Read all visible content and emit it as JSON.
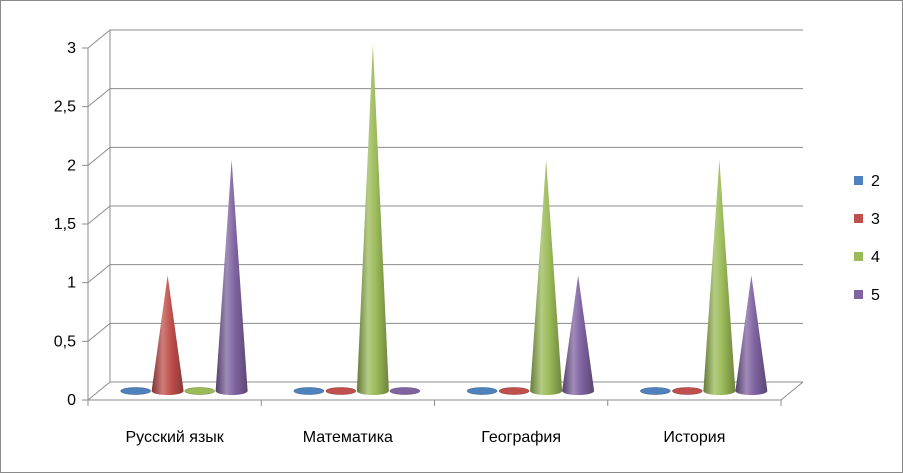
{
  "chart_data": {
    "type": "bar",
    "bar_shape": "cone-3d",
    "categories": [
      "Русский язык",
      "Математика",
      "География",
      "История"
    ],
    "series": [
      {
        "name": "2",
        "color": "#4F81BD",
        "values": [
          0,
          0,
          0,
          0
        ]
      },
      {
        "name": "3",
        "color": "#C0504D",
        "values": [
          1,
          0,
          0,
          0
        ]
      },
      {
        "name": "4",
        "color": "#9BBB59",
        "values": [
          0,
          3,
          2,
          2
        ]
      },
      {
        "name": "5",
        "color": "#8064A2",
        "values": [
          2,
          0,
          1,
          1
        ]
      }
    ],
    "y_ticks": [
      "0",
      "0,5",
      "1",
      "1,5",
      "2",
      "2,5",
      "3"
    ],
    "ylim": [
      0,
      3
    ],
    "grid": true,
    "legend_position": "right"
  }
}
